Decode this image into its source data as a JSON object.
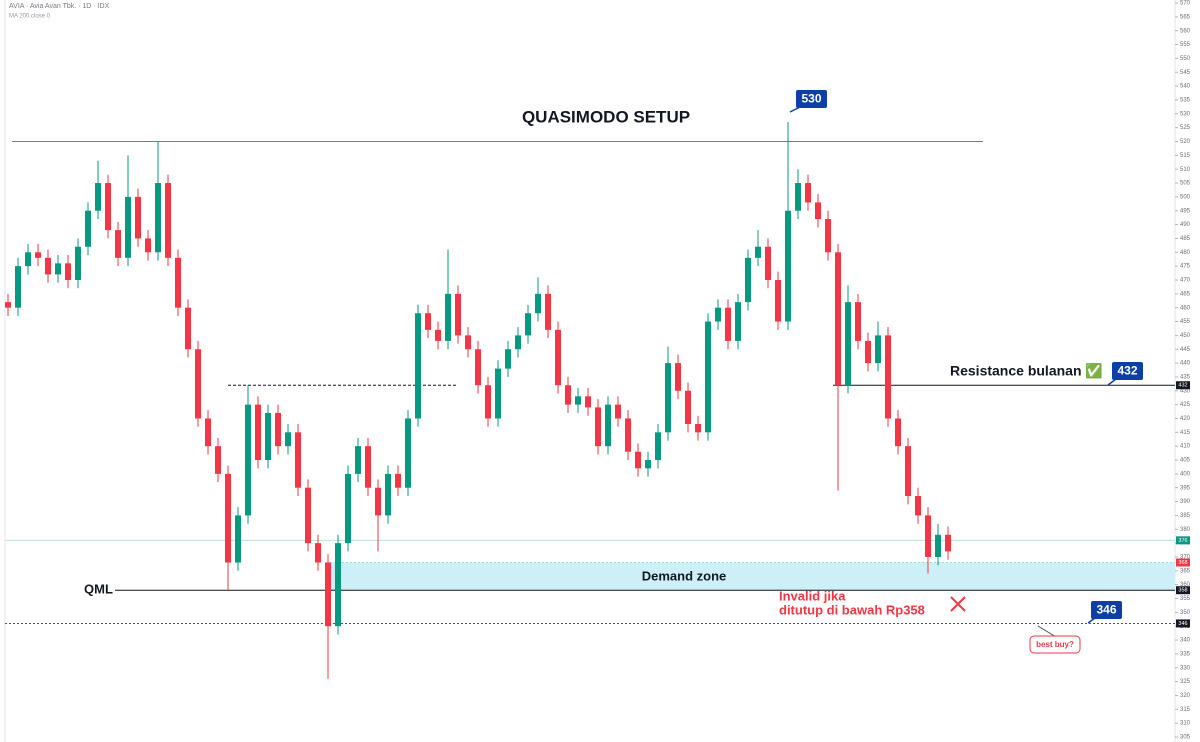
{
  "chart_data": {
    "type": "candlestick",
    "symbol": "AVIA · Avia Avan Tbk. · 1D · IDX",
    "indicator": "MA 200 close 0",
    "title": "QUASIMODO SETUP",
    "up_color": "#089981",
    "down_color": "#f23645",
    "ylim": [
      305,
      570
    ],
    "yticks": [
      305,
      310,
      315,
      320,
      325,
      330,
      335,
      340,
      345,
      350,
      355,
      360,
      365,
      370,
      375,
      380,
      385,
      390,
      395,
      400,
      405,
      410,
      415,
      420,
      425,
      430,
      435,
      440,
      445,
      450,
      455,
      460,
      465,
      470,
      475,
      480,
      485,
      490,
      495,
      500,
      505,
      510,
      515,
      520,
      525,
      530,
      535,
      540,
      545,
      550,
      555,
      560,
      565,
      570
    ],
    "open": [
      462,
      460,
      475,
      480,
      478,
      472,
      476,
      470,
      482,
      495,
      505,
      488,
      478,
      500,
      485,
      480,
      505,
      478,
      460,
      445,
      420,
      410,
      400,
      368,
      385,
      425,
      405,
      422,
      410,
      415,
      395,
      375,
      368,
      345,
      375,
      400,
      410,
      395,
      385,
      400,
      395,
      420,
      458,
      452,
      448,
      465,
      450,
      445,
      432,
      420,
      438,
      445,
      450,
      458,
      465,
      452,
      432,
      425,
      428,
      424,
      410,
      425,
      420,
      408,
      402,
      405,
      415,
      440,
      430,
      418,
      415,
      455,
      460,
      448,
      462,
      478,
      482,
      470,
      455,
      495,
      505,
      498,
      492,
      480,
      432,
      462,
      448,
      440,
      450,
      420,
      410,
      392,
      385,
      370,
      378
    ],
    "high": [
      465,
      478,
      483,
      483,
      481,
      479,
      479,
      485,
      498,
      513,
      508,
      491,
      515,
      503,
      488,
      520,
      508,
      481,
      463,
      448,
      423,
      413,
      403,
      388,
      432,
      428,
      425,
      425,
      418,
      418,
      398,
      378,
      371,
      378,
      403,
      413,
      413,
      398,
      403,
      403,
      423,
      461,
      461,
      455,
      481,
      468,
      453,
      448,
      435,
      441,
      448,
      453,
      461,
      471,
      468,
      455,
      435,
      431,
      431,
      427,
      428,
      428,
      423,
      411,
      408,
      418,
      446,
      443,
      433,
      421,
      458,
      463,
      463,
      465,
      481,
      488,
      485,
      473,
      527,
      510,
      508,
      501,
      495,
      483,
      468,
      465,
      451,
      455,
      453,
      423,
      413,
      395,
      388,
      382,
      381
    ],
    "low": [
      457,
      457,
      472,
      475,
      469,
      469,
      467,
      467,
      479,
      492,
      485,
      475,
      475,
      482,
      477,
      477,
      475,
      457,
      442,
      417,
      407,
      397,
      358,
      365,
      382,
      402,
      402,
      407,
      407,
      392,
      372,
      365,
      326,
      342,
      372,
      397,
      392,
      372,
      382,
      392,
      392,
      417,
      449,
      445,
      445,
      447,
      442,
      429,
      417,
      417,
      435,
      442,
      447,
      455,
      449,
      429,
      422,
      422,
      421,
      407,
      407,
      417,
      405,
      399,
      399,
      402,
      412,
      427,
      415,
      412,
      412,
      452,
      445,
      445,
      459,
      475,
      467,
      452,
      452,
      492,
      495,
      489,
      477,
      394,
      429,
      445,
      437,
      437,
      417,
      407,
      389,
      382,
      364,
      367,
      369
    ],
    "close": [
      460,
      475,
      480,
      478,
      472,
      476,
      470,
      482,
      495,
      505,
      488,
      478,
      500,
      485,
      480,
      505,
      478,
      460,
      445,
      420,
      410,
      400,
      368,
      385,
      425,
      405,
      422,
      410,
      415,
      395,
      375,
      368,
      345,
      375,
      400,
      410,
      395,
      385,
      400,
      395,
      420,
      458,
      452,
      448,
      465,
      450,
      445,
      432,
      420,
      438,
      445,
      450,
      458,
      465,
      452,
      432,
      425,
      428,
      424,
      410,
      425,
      420,
      408,
      402,
      405,
      415,
      440,
      430,
      418,
      415,
      455,
      460,
      448,
      462,
      478,
      482,
      470,
      455,
      495,
      505,
      498,
      492,
      480,
      432,
      462,
      448,
      440,
      450,
      420,
      410,
      392,
      385,
      370,
      378,
      372
    ],
    "resistance_level": 520,
    "left_shoulder_level": 432,
    "monthly_resistance": {
      "label": "Resistance bulanan ✅",
      "value": 432
    },
    "qml": {
      "label": "QML",
      "value": 358
    },
    "best_buy_level": 346,
    "last_price_level": 376,
    "demand_zone": {
      "label": "Demand zone",
      "range": [
        358,
        368
      ]
    },
    "invalid_note": [
      "Invalid jika",
      "ditutup di bawah Rp358"
    ],
    "best_buy_label": "best buy?",
    "callouts": [
      530,
      432,
      346
    ],
    "price_tags": [
      {
        "value": 432,
        "color": "#131722"
      },
      {
        "value": 376,
        "color": "#089981"
      },
      {
        "value": 368,
        "color": "#f23645"
      },
      {
        "value": 358,
        "color": "#131722"
      },
      {
        "value": 346,
        "color": "#131722"
      }
    ]
  }
}
